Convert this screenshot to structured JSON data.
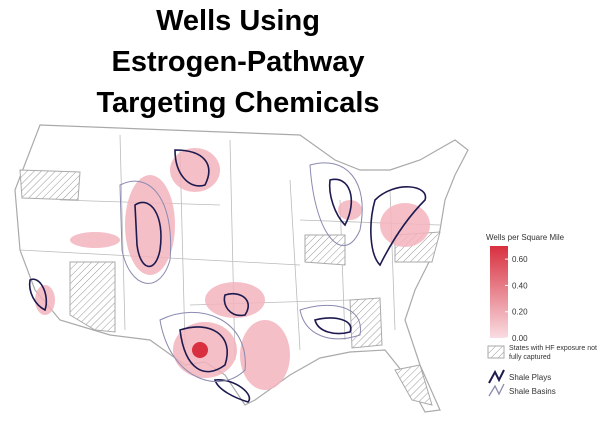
{
  "title": [
    "Wells Using",
    "Estrogen-Pathway",
    "Targeting Chemicals"
  ],
  "legend": {
    "title": "Wells per Square Mile",
    "scale": {
      "range": [
        0,
        0.7
      ],
      "colors": [
        "#f9dde2",
        "#d8303f"
      ],
      "ticks": [
        {
          "value": 0,
          "label": "0.00"
        },
        {
          "value": 0.2,
          "label": "0.20"
        },
        {
          "value": 0.4,
          "label": "0.40"
        },
        {
          "value": 0.6,
          "label": "0.60"
        }
      ]
    },
    "items": [
      {
        "label": "States with HF exposure not fully captured"
      },
      {
        "label": "Shale Plays"
      },
      {
        "label": "Shale Basins"
      }
    ]
  }
}
